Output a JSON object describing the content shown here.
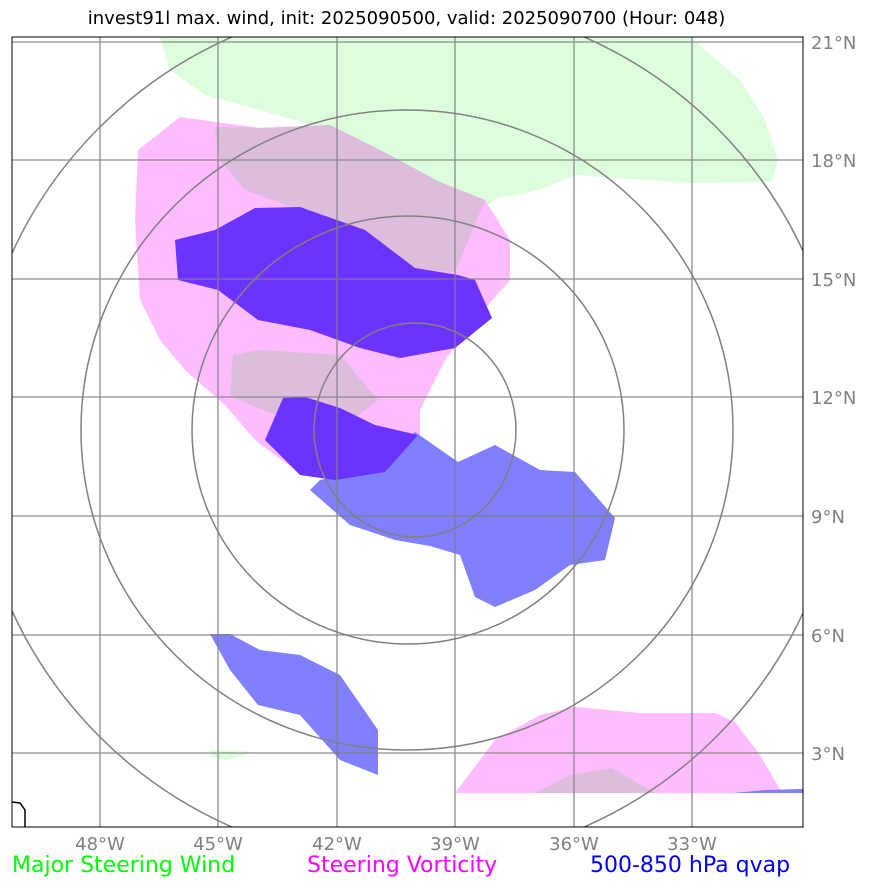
{
  "title": "invest91l max. wind, init: 2025090500, valid: 2025090700 (Hour: 048)",
  "lat_labels": [
    "21°N",
    "18°N",
    "15°N",
    "12°N",
    "9°N",
    "6°N",
    "3°N"
  ],
  "lon_labels": [
    "48°W",
    "45°W",
    "42°W",
    "39°W",
    "36°W",
    "33°W"
  ],
  "legend": [
    {
      "label": "Major Steering Wind",
      "color": "#00ff00"
    },
    {
      "label": "Steering Vorticity",
      "color": "#ff00ff"
    },
    {
      "label": "500-850 hPa qvap",
      "color": "#0000ff"
    }
  ],
  "colors": {
    "wind_fill": "#ddfedd",
    "vorticity_fill": "#ffbcff",
    "vort_wind_overlap": "#dcbddc",
    "qvap_fill": "#7f7fff",
    "qvap_vort_overlap": "#6c32ff",
    "gridline": "#808080",
    "range_ring": "#808080"
  }
}
